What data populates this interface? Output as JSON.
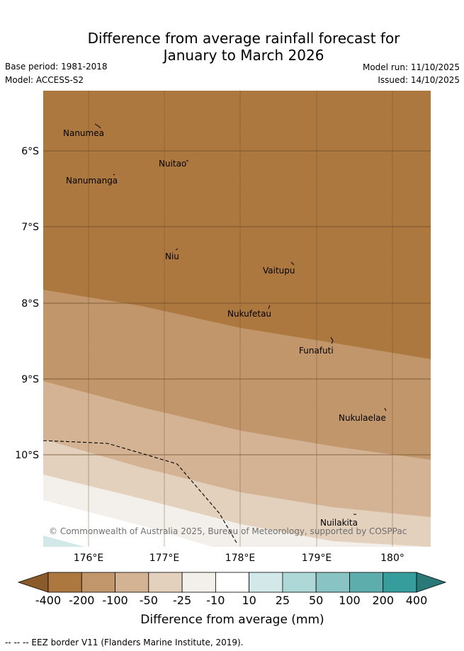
{
  "title_line1": "Difference from average rainfall forecast for",
  "title_line2": "January to March 2026",
  "base_period": "Base period: 1981-2018",
  "model": "Model: ACCESS-S2",
  "model_run": "Model run: 11/10/2025",
  "issued": "Issued: 14/10/2025",
  "lat_labels": [
    "6°S",
    "7°S",
    "8°S",
    "9°S",
    "10°S"
  ],
  "lon_labels": [
    "176°E",
    "177°E",
    "178°E",
    "179°E",
    "180°"
  ],
  "places": [
    "Nanumea",
    "Nuitao",
    "Nanumanga",
    "Niu",
    "Vaitupu",
    "Nukufetau",
    "Funafuti",
    "Nukulaelae",
    "Nuilakita"
  ],
  "copyright": "© Commonwealth of Australia 2025, Bureau of Meteorology, supported by COSPPac",
  "colorbar": {
    "ticks": [
      "-400",
      "-200",
      "-100",
      "-50",
      "-25",
      "-10",
      "10",
      "25",
      "50",
      "100",
      "200",
      "400"
    ],
    "colors": [
      "#8b5a2b",
      "#ad783f",
      "#c2966b",
      "#d3b393",
      "#e3d0bd",
      "#f3efea",
      "#ffffff",
      "#d3e8e8",
      "#aed8d8",
      "#89c3c3",
      "#5eadad",
      "#379c9c",
      "#2a7878"
    ],
    "label": "Difference from average (mm)"
  },
  "footer": "-- -- -- EEZ border V11 (Flanders Marine Institute, 2019)."
}
